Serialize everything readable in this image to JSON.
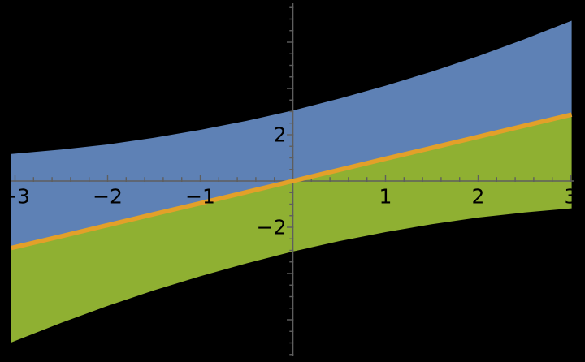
{
  "chart_data": {
    "type": "area",
    "title": "",
    "xlabel": "",
    "ylabel": "",
    "xlim": [
      -3.04,
      3.01
    ],
    "ylim": [
      -7.6,
      7.7
    ],
    "background_color": "#000000",
    "axis_color": "#5E5E5E",
    "label_color": "#000000",
    "x_axis": {
      "major_ticks": [
        -3,
        -2,
        -1,
        1,
        2,
        3
      ],
      "minor_tick_step": 0.2,
      "tick_labels": [
        {
          "value": -3,
          "text": "−3"
        },
        {
          "value": -2,
          "text": "−2"
        },
        {
          "value": -1,
          "text": "−1"
        },
        {
          "value": 1,
          "text": "1"
        },
        {
          "value": 2,
          "text": "2"
        },
        {
          "value": 3,
          "text": "3"
        }
      ]
    },
    "y_axis": {
      "major_ticks": [
        -6,
        -4,
        -2,
        2,
        4,
        6
      ],
      "minor_tick_step": 0.5,
      "tick_labels": [
        {
          "value": 2,
          "text": "2"
        },
        {
          "value": -2,
          "text": "−2"
        }
      ]
    },
    "series": [
      {
        "name": "upper-curve",
        "role": "upper-boundary",
        "color": "#5E81B5",
        "x": [
          -3.04,
          -2.5,
          -2,
          -1.5,
          -1,
          -0.5,
          0,
          0.5,
          1,
          1.5,
          2,
          2.5,
          3.01
        ],
        "y": [
          1.17,
          1.36,
          1.58,
          1.87,
          2.21,
          2.6,
          3.05,
          3.56,
          4.12,
          4.73,
          5.4,
          6.13,
          6.93
        ]
      },
      {
        "name": "middle-line",
        "role": "center-line",
        "color": "#E3A029",
        "stroke_width": 5.5,
        "x": [
          -3.04,
          -2.5,
          -2,
          -1.5,
          -1,
          -0.5,
          0,
          0.5,
          1,
          1.5,
          2,
          2.5,
          3.01
        ],
        "y": [
          -2.9,
          -2.39,
          -1.91,
          -1.43,
          -0.96,
          -0.48,
          0,
          0.48,
          0.96,
          1.43,
          1.91,
          2.39,
          2.87
        ]
      },
      {
        "name": "lower-curve",
        "role": "lower-boundary",
        "color": "#8FB032",
        "x": [
          -3.04,
          -2.5,
          -2,
          -1.5,
          -1,
          -0.5,
          0,
          0.5,
          1,
          1.5,
          2,
          2.5,
          3.01
        ],
        "y": [
          -6.98,
          -6.13,
          -5.4,
          -4.73,
          -4.12,
          -3.56,
          -3.05,
          -2.6,
          -2.21,
          -1.87,
          -1.58,
          -1.36,
          -1.18
        ]
      }
    ],
    "fills": [
      {
        "name": "blue-region",
        "between": [
          "upper-curve",
          "middle-line"
        ],
        "color": "#5E81B5"
      },
      {
        "name": "green-region",
        "between": [
          "middle-line",
          "lower-curve"
        ],
        "color": "#8FB032"
      }
    ],
    "legend": null
  }
}
